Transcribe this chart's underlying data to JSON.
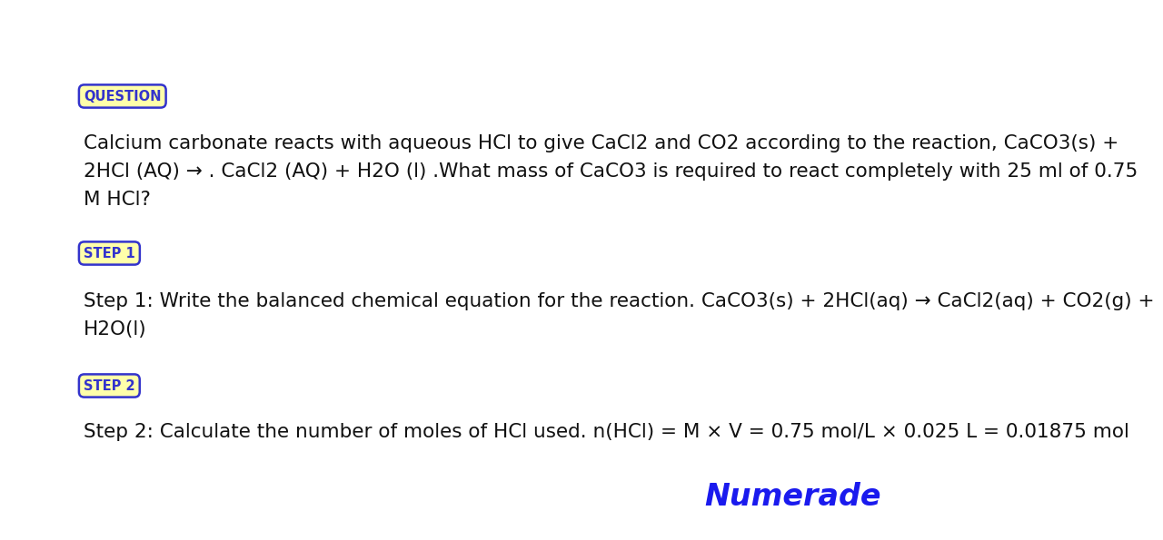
{
  "bg_color": "#ffffff",
  "question_label": "QUESTION",
  "question_label_color": "#3333cc",
  "question_label_bg": "#ffffaa",
  "question_label_border": "#3333cc",
  "question_text_line1": "Calcium carbonate reacts with aqueous HCl to give CaCl2 and CO2 according to the reaction, CaCO3(s) +",
  "question_text_line2": "2HCl (AQ) → . CaCl2 (AQ) + H2O (l) .What mass of CaCO3 is required to react completely with 25 ml of 0.75",
  "question_text_line3": "M HCl?",
  "step1_label": "STEP 1",
  "step1_label_color": "#3333cc",
  "step1_label_bg": "#ffffaa",
  "step1_label_border": "#3333cc",
  "step1_text_line1": "Step 1: Write the balanced chemical equation for the reaction. CaCO3(s) + 2HCl(aq) → CaCl2(aq) + CO2(g) +",
  "step1_text_line2": "H2O(l)",
  "step2_label": "STEP 2",
  "step2_label_color": "#3333cc",
  "step2_label_bg": "#ffffaa",
  "step2_label_border": "#3333cc",
  "step2_text_line1": "Step 2: Calculate the number of moles of HCl used. n(HCl) = M × V = 0.75 mol/L × 0.025 L = 0.01875 mol",
  "numerade_text": "Numerade",
  "numerade_color": "#1a1aee",
  "text_color": "#111111",
  "text_fontsize": 15.5,
  "label_fontsize": 10.5,
  "numerade_fontsize": 24
}
